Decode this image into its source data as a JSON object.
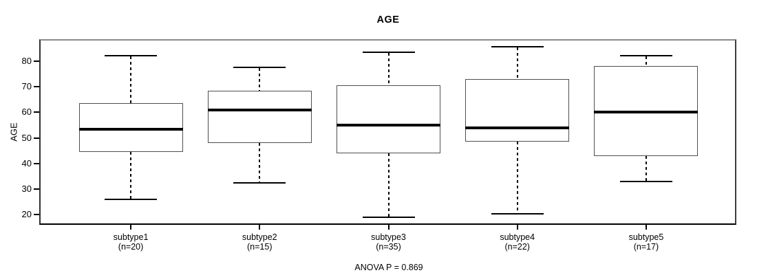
{
  "title": "AGE",
  "y_axis_label": "AGE",
  "annotation": "ANOVA P = 0.869",
  "chart_data": {
    "type": "box",
    "title": "AGE",
    "xlabel": "",
    "ylabel": "AGE",
    "annotation": "ANOVA P = 0.869",
    "grid": false,
    "legend": false,
    "ylim": [
      16.1,
      88.5
    ],
    "y_ticks": [
      20,
      30,
      40,
      50,
      60,
      70,
      80
    ],
    "categories": [
      "subtype1",
      "subtype2",
      "subtype3",
      "subtype4",
      "subtype5"
    ],
    "category_sublabels": [
      "(n=20)",
      "(n=15)",
      "(n=35)",
      "(n=22)",
      "(n=17)"
    ],
    "series": [
      {
        "name": "subtype1",
        "n": 20,
        "whisker_low": 26,
        "q1": 44.5,
        "median": 53.5,
        "q3": 63.5,
        "whisker_high": 82
      },
      {
        "name": "subtype2",
        "n": 15,
        "whisker_low": 32.5,
        "q1": 48,
        "median": 61,
        "q3": 68.5,
        "whisker_high": 77.5
      },
      {
        "name": "subtype3",
        "n": 35,
        "whisker_low": 19,
        "q1": 44,
        "median": 55,
        "q3": 70.5,
        "whisker_high": 83.5
      },
      {
        "name": "subtype4",
        "n": 22,
        "whisker_low": 20.5,
        "q1": 48.5,
        "median": 54,
        "q3": 73,
        "whisker_high": 85.5
      },
      {
        "name": "subtype5",
        "n": 17,
        "whisker_low": 33,
        "q1": 43,
        "median": 60,
        "q3": 78,
        "whisker_high": 82
      }
    ],
    "colors": {
      "background": "#ffffff",
      "box_fill": "#ffffff",
      "box_border": "#4e4e4e",
      "median": "#000000",
      "whisker": "#000000",
      "text": "#000000"
    }
  }
}
